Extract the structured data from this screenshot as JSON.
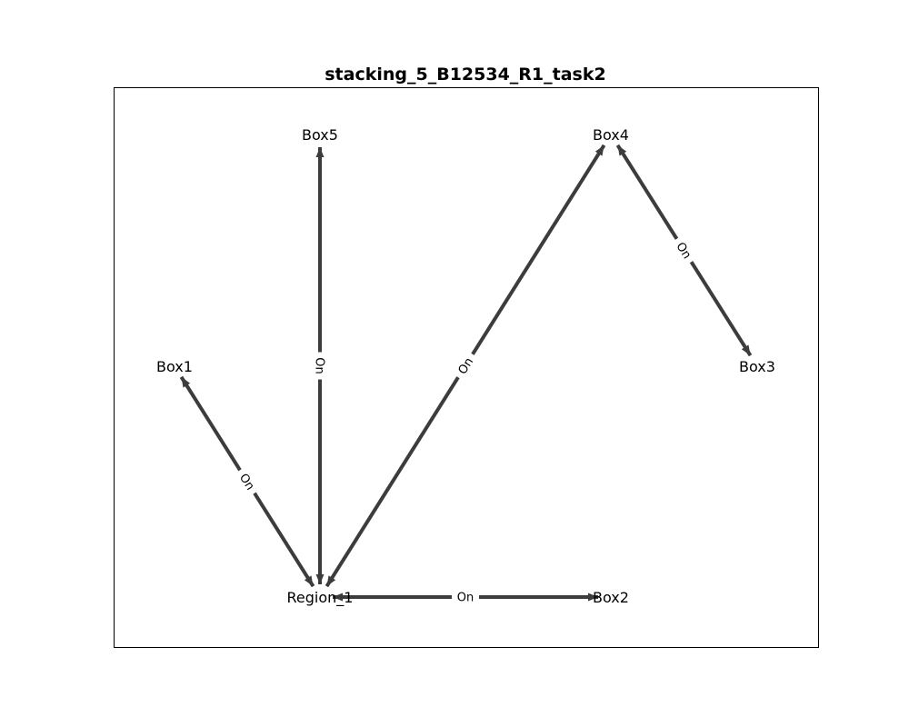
{
  "title": "stacking_5_B12534_R1_task2",
  "colors": {
    "edge": "#3c3c3c",
    "frame": "#000000",
    "background": "#ffffff"
  },
  "nodes": [
    {
      "id": "box5",
      "label": "Box5"
    },
    {
      "id": "box4",
      "label": "Box4"
    },
    {
      "id": "box1",
      "label": "Box1"
    },
    {
      "id": "box3",
      "label": "Box3"
    },
    {
      "id": "region1",
      "label": "Region_1"
    },
    {
      "id": "box2",
      "label": "Box2"
    }
  ],
  "edges": [
    {
      "from": "box5",
      "to": "region1",
      "label": "On"
    },
    {
      "from": "box4",
      "to": "region1",
      "label": "On"
    },
    {
      "from": "box1",
      "to": "region1",
      "label": "On"
    },
    {
      "from": "box2",
      "to": "region1",
      "label": "On"
    },
    {
      "from": "box3",
      "to": "box4",
      "label": "On"
    }
  ]
}
